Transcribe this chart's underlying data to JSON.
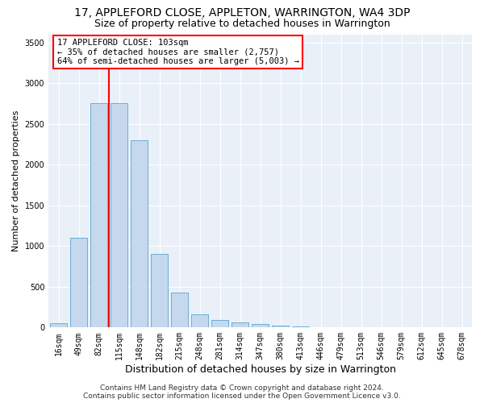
{
  "title": "17, APPLEFORD CLOSE, APPLETON, WARRINGTON, WA4 3DP",
  "subtitle": "Size of property relative to detached houses in Warrington",
  "xlabel": "Distribution of detached houses by size in Warrington",
  "ylabel": "Number of detached properties",
  "bar_labels": [
    "16sqm",
    "49sqm",
    "82sqm",
    "115sqm",
    "148sqm",
    "182sqm",
    "215sqm",
    "248sqm",
    "281sqm",
    "314sqm",
    "347sqm",
    "380sqm",
    "413sqm",
    "446sqm",
    "479sqm",
    "513sqm",
    "546sqm",
    "579sqm",
    "612sqm",
    "645sqm",
    "678sqm"
  ],
  "bar_values": [
    50,
    1100,
    2750,
    2750,
    2300,
    900,
    430,
    160,
    90,
    60,
    40,
    20,
    12,
    8,
    5,
    3,
    2,
    1,
    1,
    0,
    0
  ],
  "bar_color": "#c5d8ed",
  "bar_edge_color": "#6aaed6",
  "ylim": [
    0,
    3600
  ],
  "yticks": [
    0,
    500,
    1000,
    1500,
    2000,
    2500,
    3000,
    3500
  ],
  "red_line_x": 2.5,
  "annotation_text": "17 APPLEFORD CLOSE: 103sqm\n← 35% of detached houses are smaller (2,757)\n64% of semi-detached houses are larger (5,003) →",
  "footer_line1": "Contains HM Land Registry data © Crown copyright and database right 2024.",
  "footer_line2": "Contains public sector information licensed under the Open Government Licence v3.0.",
  "fig_bg_color": "#ffffff",
  "plot_bg_color": "#eaf0f8",
  "grid_color": "#ffffff",
  "title_fontsize": 10,
  "subtitle_fontsize": 9,
  "xlabel_fontsize": 9,
  "ylabel_fontsize": 8,
  "footer_fontsize": 6.5,
  "tick_fontsize": 7
}
